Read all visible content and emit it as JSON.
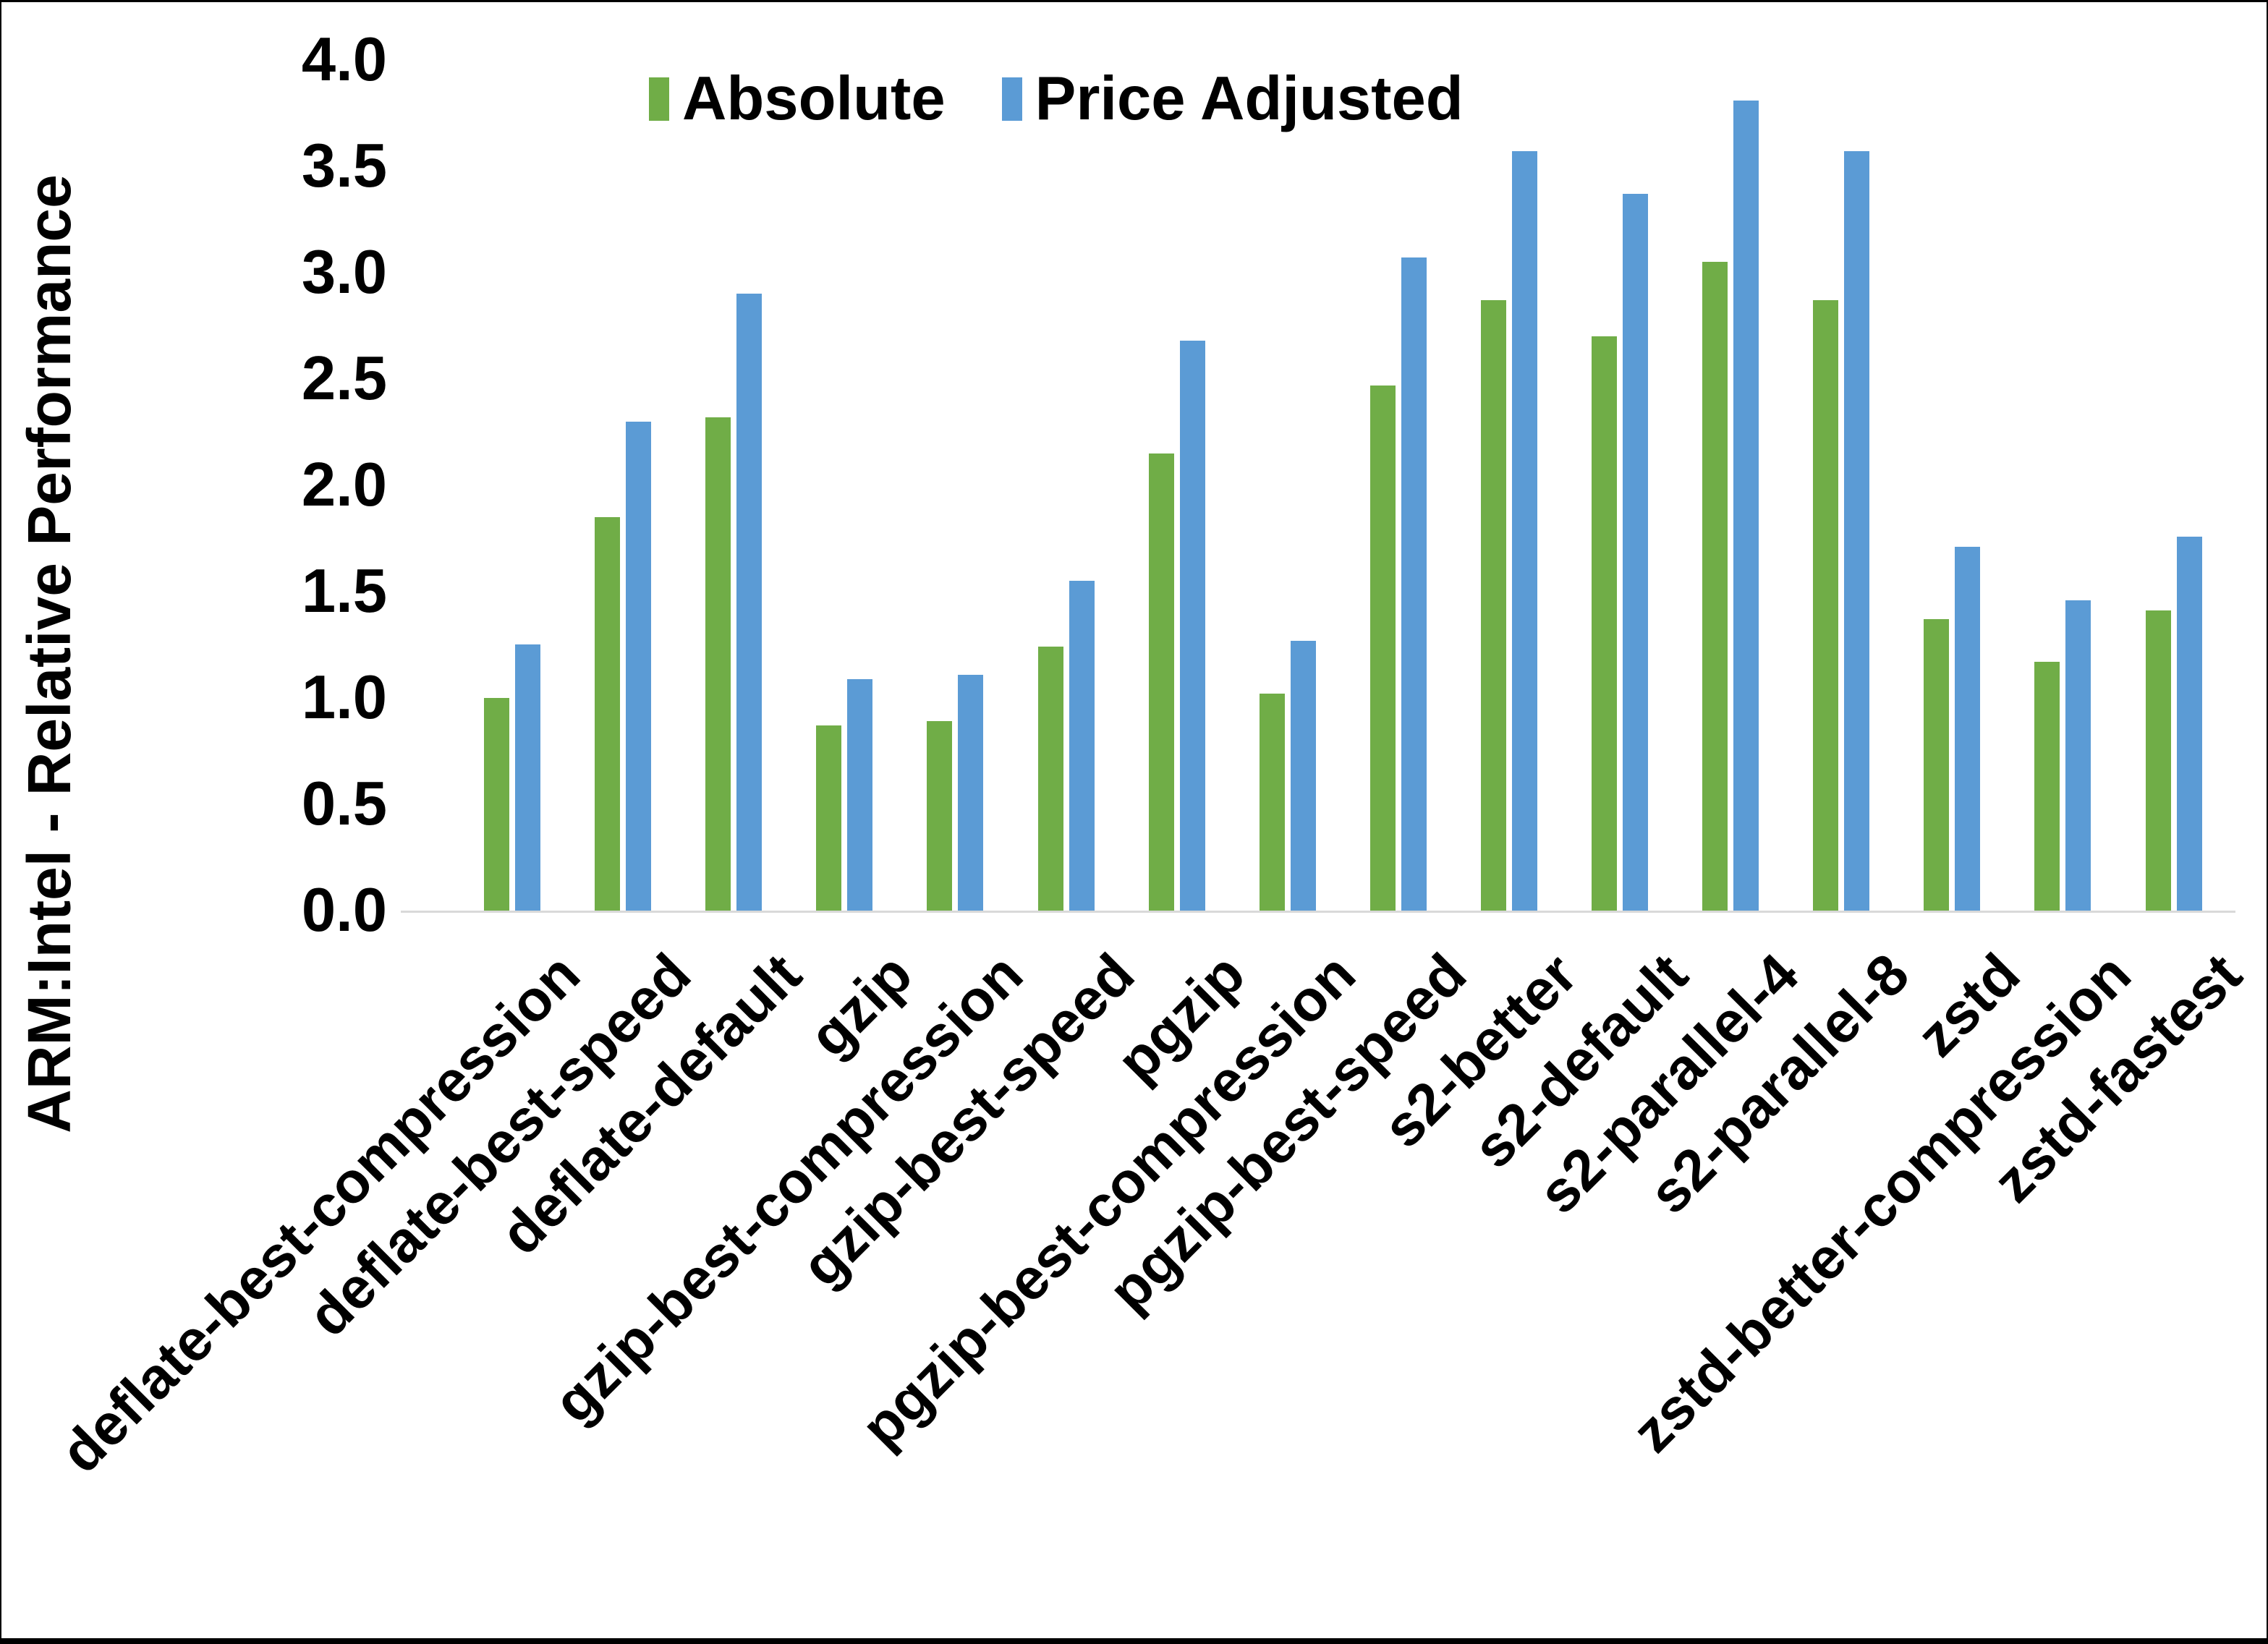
{
  "chart_data": {
    "type": "bar",
    "title": "",
    "xlabel": "",
    "ylabel": "ARM:Intel - Relative Performance",
    "ylim": [
      0.0,
      4.0
    ],
    "ytick_step": 0.5,
    "yticks": [
      "0.0",
      "0.5",
      "1.0",
      "1.5",
      "2.0",
      "2.5",
      "3.0",
      "3.5",
      "4.0"
    ],
    "grid": false,
    "legend_position": "top-center",
    "axis_line_color": "#d9d9d9",
    "text_color": "#000000",
    "categories": [
      "deflate-best-compression",
      "deflate-best-speed",
      "deflate-default",
      "gzip",
      "gzip-best-compression",
      "gzip-best-speed",
      "pgzip",
      "pgzip-best-compression",
      "pgzip-best-speed",
      "s2-better",
      "s2-default",
      "s2-parallel-4",
      "s2-parallel-8",
      "zstd",
      "zstd-better-compression",
      "zstd-fastest"
    ],
    "series": [
      {
        "name": "Absolute",
        "color": "#70AD47",
        "values": [
          1.0,
          1.85,
          2.32,
          0.87,
          0.89,
          1.24,
          2.15,
          1.02,
          2.47,
          2.87,
          2.7,
          3.05,
          2.87,
          1.37,
          1.17,
          1.41
        ]
      },
      {
        "name": "Price Adjusted",
        "color": "#5B9BD5",
        "values": [
          1.25,
          2.3,
          2.9,
          1.09,
          1.11,
          1.55,
          2.68,
          1.27,
          3.07,
          3.57,
          3.37,
          3.81,
          3.57,
          1.71,
          1.46,
          1.76
        ]
      }
    ]
  }
}
